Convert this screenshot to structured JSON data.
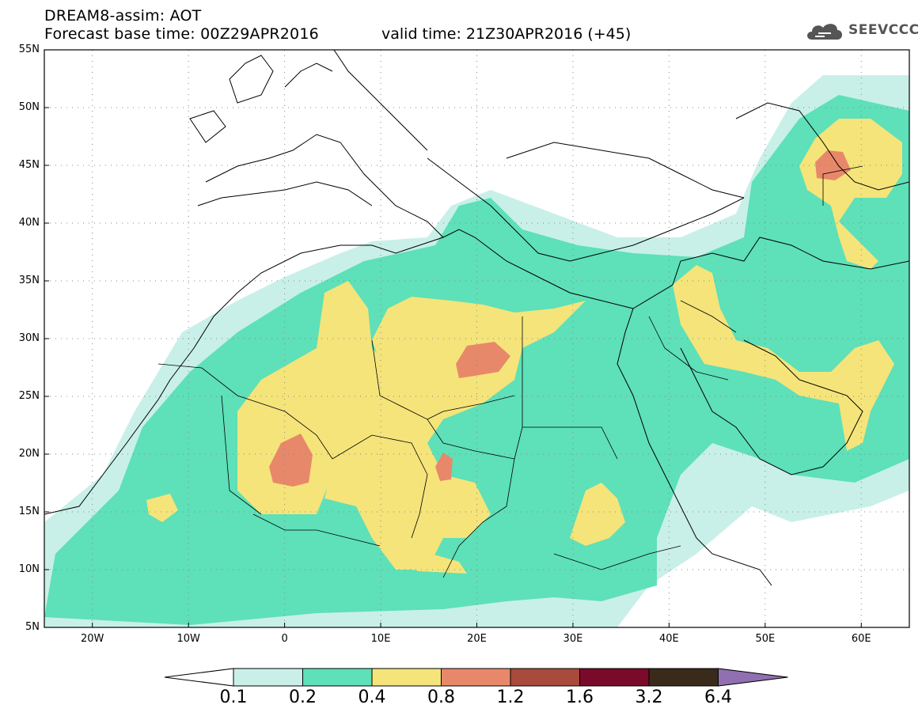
{
  "header": {
    "title_line1": "DREAM8-assim: AOT",
    "title_line2": "Forecast base time: 00Z29APR2016",
    "valid_time": "valid time: 21Z30APR2016 (+45)",
    "logo_text": "SEEVCCC"
  },
  "map": {
    "lat_labels": [
      "55N",
      "50N",
      "45N",
      "40N",
      "35N",
      "30N",
      "25N",
      "20N",
      "15N",
      "10N",
      "5N"
    ],
    "lon_labels": [
      "20W",
      "10W",
      "0",
      "10E",
      "20E",
      "30E",
      "40E",
      "50E",
      "60E"
    ],
    "extent": {
      "lon": [
        -25,
        65
      ],
      "lat": [
        5,
        55
      ]
    },
    "field": "AOT"
  },
  "colorbar": {
    "labels": [
      "0.1",
      "0.2",
      "0.4",
      "0.8",
      "1.2",
      "1.6",
      "3.2",
      "6.4"
    ],
    "colors": [
      "#ffffff",
      "#c8f0e8",
      "#5ee0b8",
      "#f5e47a",
      "#e8886a",
      "#a84a3c",
      "#7a0a2a",
      "#3a2a1a",
      "#9070b0"
    ]
  },
  "palette": {
    "c1": "#c8f0e8",
    "c2": "#5ee0b8",
    "c3": "#f5e47a",
    "c4": "#e8886a"
  }
}
